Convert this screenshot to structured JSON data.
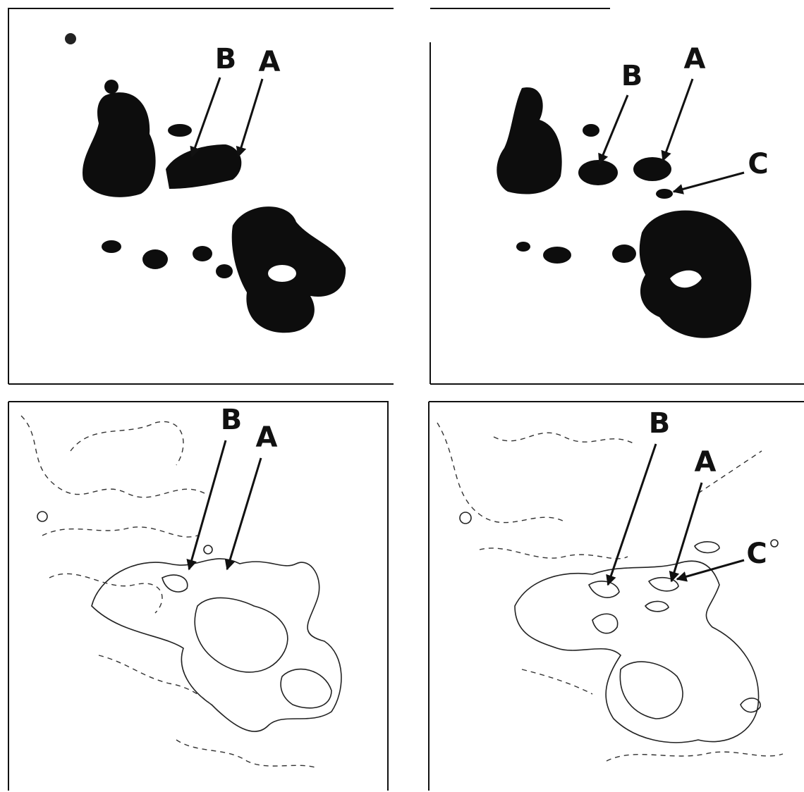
{
  "panels": [
    {
      "labels": [
        "B",
        "A"
      ]
    },
    {
      "labels": [
        "B",
        "A",
        "C"
      ]
    },
    {
      "labels": [
        "B",
        "A"
      ]
    },
    {
      "labels": [
        "B",
        "A",
        "C"
      ]
    }
  ]
}
